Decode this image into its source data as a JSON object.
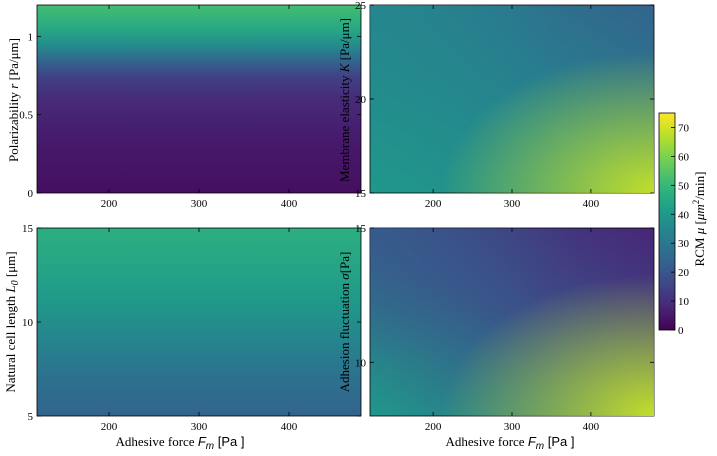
{
  "chart_data": [
    {
      "type": "heatmap",
      "id": "tl",
      "xlabel": "",
      "ylabel_parts": [
        "Polarizability ",
        "r",
        " [Pa/μm]"
      ],
      "xlim": [
        120,
        480
      ],
      "ylim": [
        0,
        1.2
      ],
      "xticks": [
        200,
        300,
        400
      ],
      "xtick_labels": [
        "200",
        "300",
        "400"
      ],
      "yticks": [
        0,
        0.5,
        1
      ],
      "ytick_labels": [
        "0",
        "0.5",
        "1"
      ],
      "value_field": {
        "description_axis": "y",
        "stops": [
          {
            "y": 0.0,
            "v": 3
          },
          {
            "y": 0.3,
            "v": 5
          },
          {
            "y": 0.6,
            "v": 9
          },
          {
            "y": 0.75,
            "v": 15
          },
          {
            "y": 0.85,
            "v": 25
          },
          {
            "y": 0.95,
            "v": 37
          },
          {
            "y": 1.05,
            "v": 45
          },
          {
            "y": 1.2,
            "v": 52
          }
        ]
      }
    },
    {
      "type": "heatmap",
      "id": "tr",
      "xlabel": "",
      "ylabel_parts": [
        "Membrane elasticity ",
        "K",
        " [Pa/μm]"
      ],
      "xlim": [
        120,
        480
      ],
      "ylim": [
        15,
        25
      ],
      "xticks": [
        200,
        300,
        400
      ],
      "xtick_labels": [
        "200",
        "300",
        "400"
      ],
      "yticks": [
        15,
        20,
        25
      ],
      "ytick_labels": [
        "15",
        "20",
        "25"
      ],
      "value_field": {
        "description_axis": "xy",
        "corners": {
          "bottom_left": 40,
          "bottom_right": 68,
          "top_left": 35,
          "top_right": 24,
          "center": 34
        }
      }
    },
    {
      "type": "heatmap",
      "id": "bl",
      "xlabel_parts": [
        "Adhesive force ",
        "F",
        "m",
        " [Pa ]"
      ],
      "ylabel_parts": [
        "Natural cell length ",
        "L",
        "0",
        " [μm]"
      ],
      "xlim": [
        120,
        480
      ],
      "ylim": [
        5,
        15
      ],
      "xticks": [
        200,
        300,
        400
      ],
      "xtick_labels": [
        "200",
        "300",
        "400"
      ],
      "yticks": [
        5,
        10,
        15
      ],
      "ytick_labels": [
        "5",
        "10",
        "15"
      ],
      "value_field": {
        "description_axis": "y",
        "stops": [
          {
            "y": 5,
            "v": 24
          },
          {
            "y": 7,
            "v": 28
          },
          {
            "y": 9,
            "v": 34
          },
          {
            "y": 11,
            "v": 40
          },
          {
            "y": 13,
            "v": 44
          },
          {
            "y": 15,
            "v": 47
          }
        ]
      }
    },
    {
      "type": "heatmap",
      "id": "br",
      "xlabel_parts": [
        "Adhesive force ",
        "F",
        "m",
        " [Pa ]"
      ],
      "ylabel_parts": [
        "Adhesion fluctuation ",
        "σ",
        "[Pa]"
      ],
      "xlim": [
        120,
        480
      ],
      "ylim": [
        8,
        15
      ],
      "xticks": [
        200,
        300,
        400
      ],
      "xtick_labels": [
        "200",
        "300",
        "400"
      ],
      "yticks": [
        10,
        15
      ],
      "ytick_labels": [
        "10",
        "15"
      ],
      "value_field": {
        "description_axis": "xy",
        "corners": {
          "bottom_left": 40,
          "bottom_right": 68,
          "top_left": 22,
          "top_right": 8,
          "center": 20
        }
      }
    }
  ],
  "colorbar": {
    "label_parts": [
      "RCM ",
      "μ",
      " [",
      "μm",
      "2",
      "/min]"
    ],
    "range": [
      0,
      75
    ],
    "ticks": [
      0,
      10,
      20,
      30,
      40,
      50,
      60,
      70
    ],
    "tick_labels": [
      "0",
      "10",
      "20",
      "30",
      "40",
      "50",
      "60",
      "70"
    ],
    "colormap": "viridis"
  }
}
